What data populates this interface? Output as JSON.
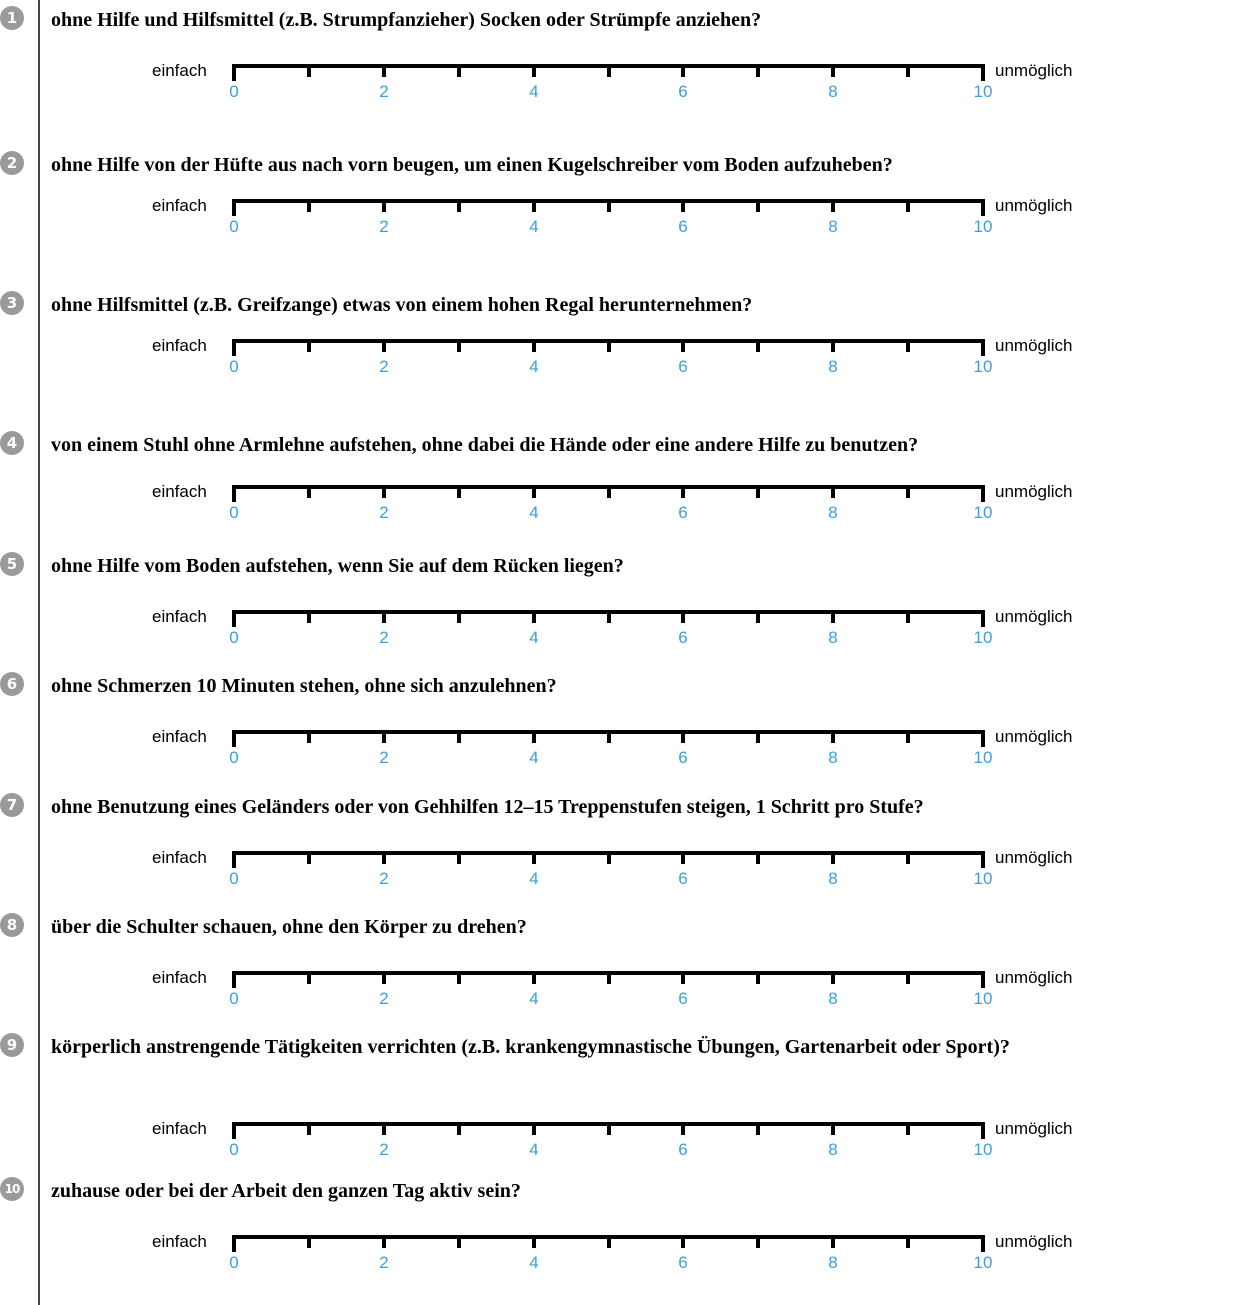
{
  "items": [
    {
      "number": "1",
      "question": "ohne Hilfe und Hilfsmittel (z.B. Strumpfanzieher) Socken oder Strümpfe anziehen?"
    },
    {
      "number": "2",
      "question": "ohne Hilfe von der Hüfte aus nach vorn beugen, um einen Kugelschreiber vom Boden aufzuheben?"
    },
    {
      "number": "3",
      "question": "ohne Hilfsmittel (z.B. Greifzange) etwas von einem hohen Regal herunternehmen?"
    },
    {
      "number": "4",
      "question": "von einem Stuhl ohne Armlehne aufstehen, ohne dabei die Hände oder eine andere Hilfe zu benutzen?"
    },
    {
      "number": "5",
      "question": "ohne Hilfe vom Boden aufstehen, wenn Sie auf dem Rücken liegen?"
    },
    {
      "number": "6",
      "question": "ohne Schmerzen 10 Minuten stehen, ohne sich anzulehnen?"
    },
    {
      "number": "7",
      "question": "ohne Benutzung eines Geländers oder von Gehhilfen 12–15 Treppenstufen steigen, 1 Schritt pro Stufe?"
    },
    {
      "number": "8",
      "question": "über die Schulter schauen, ohne den Körper zu drehen?"
    },
    {
      "number": "9",
      "question": "körperlich anstrengende Tätigkeiten verrichten (z.B. krankengymnastische Übungen, Gartenarbeit oder Sport)?"
    },
    {
      "number": "10",
      "question": "zuhause oder bei der Arbeit den ganzen Tag aktiv sein?"
    }
  ],
  "scale": {
    "left_label": "einfach",
    "right_label": "unmöglich",
    "numbers": [
      "0",
      "2",
      "4",
      "6",
      "8",
      "10"
    ],
    "number_color": "#3a9fe0",
    "badge_color": "#9a9a9a"
  }
}
